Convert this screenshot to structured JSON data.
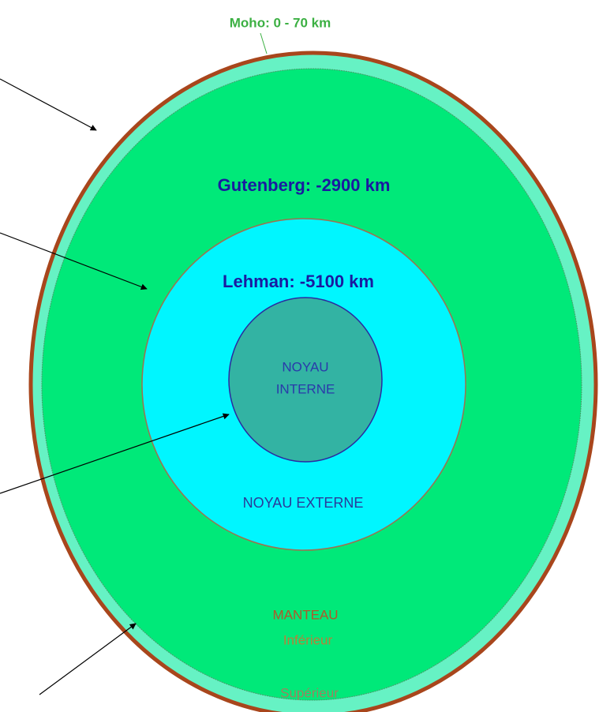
{
  "boundaries": {
    "moho": "Moho: 0 - 70 km",
    "gutenberg": "Gutenberg: -2900 km",
    "lehman": "Lehman: -5100 km"
  },
  "layers": {
    "inner_core": [
      "NOYAU",
      "INTERNE"
    ],
    "outer_core": "NOYAU EXTERNE",
    "mantle": "MANTEAU",
    "lower_mantle": "Inférieur",
    "upper_mantle": "Supérieur"
  }
}
